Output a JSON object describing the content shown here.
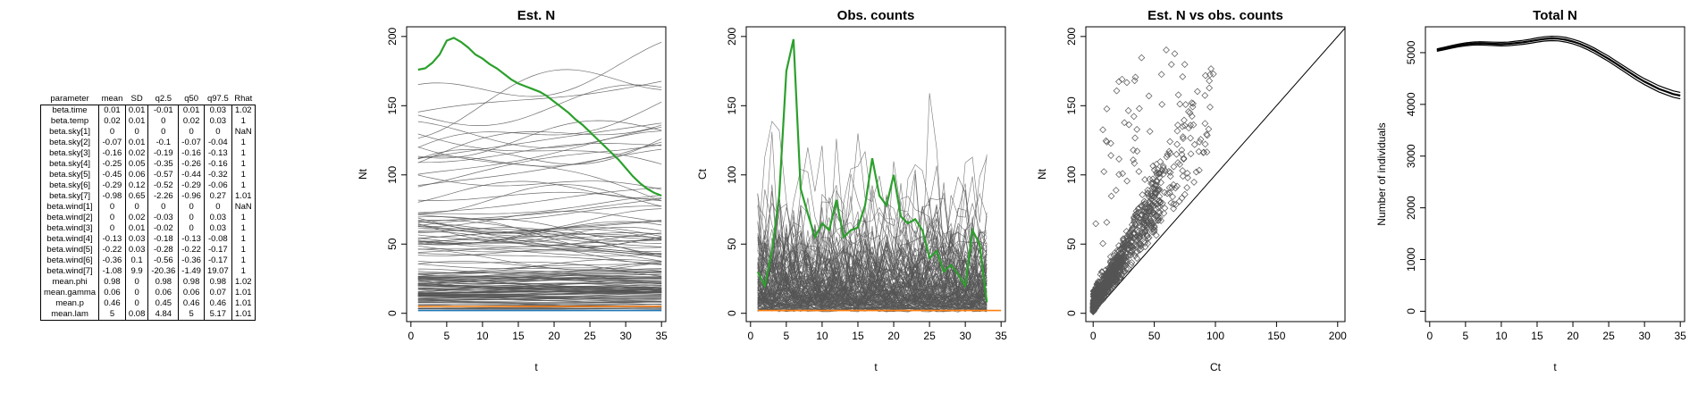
{
  "table": {
    "headers": [
      "parameter",
      "mean",
      "SD",
      "q2.5",
      "q50",
      "q97.5",
      "Rhat"
    ],
    "rows": [
      [
        "beta.time",
        "0.01",
        "0.01",
        "-0.01",
        "0.01",
        "0.03",
        "1.02"
      ],
      [
        "beta.temp",
        "0.02",
        "0.01",
        "0",
        "0.02",
        "0.03",
        "1"
      ],
      [
        "beta.sky[1]",
        "0",
        "0",
        "0",
        "0",
        "0",
        "NaN"
      ],
      [
        "beta.sky[2]",
        "-0.07",
        "0.01",
        "-0.1",
        "-0.07",
        "-0.04",
        "1"
      ],
      [
        "beta.sky[3]",
        "-0.16",
        "0.02",
        "-0.19",
        "-0.16",
        "-0.13",
        "1"
      ],
      [
        "beta.sky[4]",
        "-0.25",
        "0.05",
        "-0.35",
        "-0.26",
        "-0.16",
        "1"
      ],
      [
        "beta.sky[5]",
        "-0.45",
        "0.06",
        "-0.57",
        "-0.44",
        "-0.32",
        "1"
      ],
      [
        "beta.sky[6]",
        "-0.29",
        "0.12",
        "-0.52",
        "-0.29",
        "-0.06",
        "1"
      ],
      [
        "beta.sky[7]",
        "-0.98",
        "0.65",
        "-2.26",
        "-0.96",
        "0.27",
        "1.01"
      ],
      [
        "beta.wind[1]",
        "0",
        "0",
        "0",
        "0",
        "0",
        "NaN"
      ],
      [
        "beta.wind[2]",
        "0",
        "0.02",
        "-0.03",
        "0",
        "0.03",
        "1"
      ],
      [
        "beta.wind[3]",
        "0",
        "0.01",
        "-0.02",
        "0",
        "0.03",
        "1"
      ],
      [
        "beta.wind[4]",
        "-0.13",
        "0.03",
        "-0.18",
        "-0.13",
        "-0.08",
        "1"
      ],
      [
        "beta.wind[5]",
        "-0.22",
        "0.03",
        "-0.28",
        "-0.22",
        "-0.17",
        "1"
      ],
      [
        "beta.wind[6]",
        "-0.36",
        "0.1",
        "-0.56",
        "-0.36",
        "-0.17",
        "1"
      ],
      [
        "beta.wind[7]",
        "-1.08",
        "9.9",
        "-20.36",
        "-1.49",
        "19.07",
        "1"
      ],
      [
        "mean.phi",
        "0.98",
        "0",
        "0.98",
        "0.98",
        "0.98",
        "1.02"
      ],
      [
        "mean.gamma",
        "0.06",
        "0",
        "0.06",
        "0.06",
        "0.07",
        "1.01"
      ],
      [
        "mean.p",
        "0.46",
        "0",
        "0.45",
        "0.46",
        "0.46",
        "1.01"
      ],
      [
        "mean.lam",
        "5",
        "0.08",
        "4.84",
        "5",
        "5.17",
        "1.01"
      ]
    ]
  },
  "colors": {
    "highlight": "#2ca02c",
    "baseline": "#ff7f0e",
    "baseline_blue": "#1f77b4",
    "lines": "#555555",
    "points": "#555555",
    "total": "#000000"
  },
  "chart_data": [
    {
      "type": "line",
      "title": "Est. N",
      "xlabel": "t",
      "ylabel": "Nt",
      "xlim": [
        0,
        35
      ],
      "ylim": [
        0,
        200
      ],
      "xticks": [
        "0",
        "5",
        "10",
        "15",
        "20",
        "25",
        "30",
        "35"
      ],
      "yticks": [
        "0",
        "50",
        "100",
        "150",
        "200"
      ],
      "highlight_series": {
        "x": [
          1,
          2,
          3,
          4,
          5,
          6,
          7,
          8,
          9,
          10,
          11,
          12,
          13,
          14,
          15,
          16,
          17,
          18,
          19,
          20,
          21,
          22,
          23,
          24,
          25,
          26,
          27,
          28,
          29,
          30,
          31,
          32,
          33,
          34,
          35
        ],
        "values": [
          176,
          177,
          181,
          187,
          197,
          199,
          196,
          192,
          187,
          184,
          180,
          177,
          173,
          169,
          166,
          164,
          162,
          160,
          157,
          153,
          149,
          145,
          140,
          136,
          131,
          126,
          121,
          116,
          111,
          105,
          99,
          94,
          90,
          87,
          85
        ]
      },
      "background_series_count": 150,
      "baseline_values": [
        5,
        2
      ]
    },
    {
      "type": "line",
      "title": "Obs. counts",
      "xlabel": "t",
      "ylabel": "Ct",
      "xlim": [
        0,
        35
      ],
      "ylim": [
        0,
        200
      ],
      "xticks": [
        "0",
        "5",
        "10",
        "15",
        "20",
        "25",
        "30",
        "35"
      ],
      "yticks": [
        "0",
        "50",
        "100",
        "150",
        "200"
      ],
      "highlight_series": {
        "x": [
          1,
          2,
          3,
          4,
          5,
          6,
          7,
          8,
          9,
          10,
          11,
          12,
          13,
          14,
          15,
          16,
          17,
          18,
          19,
          20,
          21,
          22,
          23,
          24,
          25,
          26,
          27,
          28,
          29,
          30,
          31,
          32,
          33
        ],
        "values": [
          30,
          20,
          45,
          85,
          175,
          198,
          90,
          72,
          55,
          65,
          60,
          82,
          55,
          60,
          62,
          78,
          112,
          85,
          78,
          100,
          70,
          65,
          68,
          60,
          40,
          45,
          30,
          35,
          28,
          20,
          60,
          50,
          8
        ]
      },
      "background_series_count": 150,
      "baseline_values": [
        2
      ]
    },
    {
      "type": "scatter",
      "title": "Est. N vs obs. counts",
      "xlabel": "Ct",
      "ylabel": "Nt",
      "xlim": [
        0,
        200
      ],
      "ylim": [
        0,
        200
      ],
      "xticks": [
        "0",
        "50",
        "100",
        "150",
        "200"
      ],
      "yticks": [
        "0",
        "50",
        "100",
        "150",
        "200"
      ],
      "identity_line": true,
      "point_count": 1200
    },
    {
      "type": "line",
      "title": "Total N",
      "xlabel": "t",
      "ylabel": "Number of individuals",
      "xlim": [
        0,
        35
      ],
      "ylim": [
        0,
        5000
      ],
      "xticks": [
        "0",
        "5",
        "10",
        "15",
        "20",
        "25",
        "30",
        "35"
      ],
      "yticks": [
        "0",
        "1000",
        "2000",
        "3000",
        "4000",
        "5000"
      ],
      "series": {
        "x": [
          1,
          2,
          3,
          4,
          5,
          6,
          7,
          8,
          9,
          10,
          11,
          12,
          13,
          14,
          15,
          16,
          17,
          18,
          19,
          20,
          21,
          22,
          23,
          24,
          25,
          26,
          27,
          28,
          29,
          30,
          31,
          32,
          33,
          34,
          35
        ],
        "values": [
          5050,
          5080,
          5110,
          5140,
          5160,
          5175,
          5180,
          5175,
          5170,
          5165,
          5170,
          5185,
          5200,
          5220,
          5245,
          5265,
          5275,
          5270,
          5250,
          5215,
          5170,
          5110,
          5040,
          4960,
          4880,
          4790,
          4700,
          4610,
          4520,
          4440,
          4370,
          4300,
          4250,
          4200,
          4170
        ]
      },
      "band": 40
    }
  ]
}
